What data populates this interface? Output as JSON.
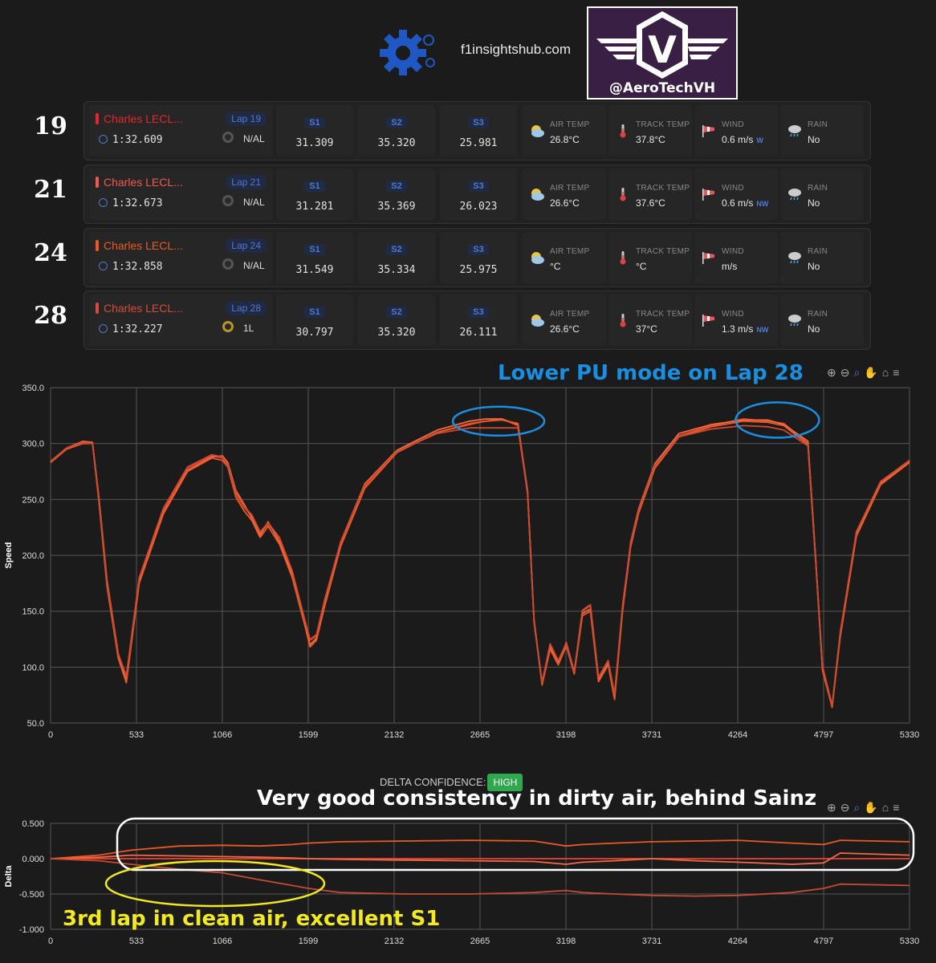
{
  "header": {
    "site": "f1insightshub.com",
    "handle": "@AeroTechVH",
    "logo_letter": "V"
  },
  "laps": [
    {
      "lap": "19",
      "driver": "Charles LECL...",
      "pill": "Lap 19",
      "time": "1:32.609",
      "tyre": "N/AL",
      "tyre_type": "std",
      "s1": "31.309",
      "s2": "35.320",
      "s3": "25.981",
      "air": "26.8°C",
      "track": "37.8°C",
      "wind": "0.6 m/s",
      "wind_dir": "W",
      "rain": "No",
      "color": "#e4262f"
    },
    {
      "lap": "21",
      "driver": "Charles LECL...",
      "pill": "Lap 21",
      "time": "1:32.673",
      "tyre": "N/AL",
      "tyre_type": "std",
      "s1": "31.281",
      "s2": "35.369",
      "s3": "26.023",
      "air": "26.6°C",
      "track": "37.6°C",
      "wind": "0.6 m/s",
      "wind_dir": "NW",
      "rain": "No",
      "color": "#f05a4f"
    },
    {
      "lap": "24",
      "driver": "Charles LECL...",
      "pill": "Lap 24",
      "time": "1:32.858",
      "tyre": "N/AL",
      "tyre_type": "std",
      "s1": "31.549",
      "s2": "35.334",
      "s3": "25.975",
      "air": "°C",
      "track": "°C",
      "wind": "m/s",
      "wind_dir": "",
      "rain": "No",
      "color": "#ea5a24"
    },
    {
      "lap": "28",
      "driver": "Charles LECL...",
      "pill": "Lap 28",
      "time": "1:32.227",
      "tyre": "1L",
      "tyre_type": "int",
      "s1": "30.797",
      "s2": "35.320",
      "s3": "26.111",
      "air": "26.6°C",
      "track": "37°C",
      "wind": "1.3 m/s",
      "wind_dir": "NW",
      "rain": "No",
      "color": "#d94a3a"
    }
  ],
  "labels": {
    "s1": "S1",
    "s2": "S2",
    "s3": "S3",
    "air": "AIR TEMP",
    "track": "TRACK TEMP",
    "wind": "WIND",
    "rain": "RAIN"
  },
  "delta_confidence": {
    "label": "DELTA CONFIDENCE:",
    "value": "HIGH"
  },
  "annotations": {
    "speed": "Lower PU mode on Lap 28",
    "dirty_air": "Very good consistency in dirty air, behind Sainz",
    "clean_air": "3rd lap in clean air, excellent S1"
  },
  "colors": {
    "annotation_blue": "#1a8ee0",
    "annotation_yellow": "#f2ea1f",
    "annotation_white": "#ffffff",
    "line": "#e0502e"
  },
  "chart_data": [
    {
      "type": "line",
      "title": "",
      "xlabel": "",
      "ylabel": "Speed",
      "xlim": [
        0,
        5330
      ],
      "ylim": [
        50,
        350
      ],
      "xticks": [
        "0",
        "533",
        "1066",
        "1599",
        "2132",
        "2665",
        "3198",
        "3731",
        "4264",
        "4797",
        "5330"
      ],
      "yticks": [
        "50.0",
        "100.0",
        "150.0",
        "200.0",
        "250.0",
        "300.0",
        "350.0"
      ],
      "grid": true,
      "x": [
        0,
        100,
        200,
        260,
        300,
        350,
        420,
        470,
        550,
        700,
        850,
        1000,
        1066,
        1100,
        1150,
        1200,
        1250,
        1300,
        1350,
        1420,
        1500,
        1580,
        1610,
        1650,
        1700,
        1800,
        1950,
        2150,
        2400,
        2600,
        2700,
        2800,
        2900,
        2960,
        3000,
        3050,
        3100,
        3150,
        3200,
        3250,
        3300,
        3350,
        3400,
        3460,
        3500,
        3550,
        3600,
        3650,
        3750,
        3900,
        4100,
        4300,
        4450,
        4550,
        4700,
        4750,
        4790,
        4850,
        4900,
        5000,
        5150,
        5330
      ],
      "series": [
        {
          "name": "Lap 19",
          "values": [
            284,
            296,
            301,
            301,
            250,
            175,
            110,
            91,
            178,
            240,
            278,
            289,
            287,
            280,
            255,
            243,
            235,
            220,
            228,
            215,
            185,
            140,
            124,
            128,
            158,
            210,
            262,
            293,
            310,
            318,
            320,
            322,
            316,
            255,
            140,
            85,
            120,
            105,
            120,
            95,
            150,
            155,
            90,
            105,
            75,
            155,
            210,
            240,
            280,
            307,
            316,
            322,
            320,
            318,
            300,
            190,
            100,
            65,
            130,
            220,
            265,
            285
          ]
        },
        {
          "name": "Lap 21",
          "values": [
            284,
            296,
            302,
            301,
            252,
            178,
            112,
            89,
            176,
            238,
            276,
            288,
            289,
            283,
            258,
            246,
            233,
            218,
            230,
            212,
            183,
            138,
            120,
            126,
            156,
            212,
            264,
            294,
            312,
            320,
            322,
            322,
            317,
            258,
            142,
            86,
            118,
            104,
            122,
            96,
            148,
            152,
            88,
            104,
            73,
            153,
            212,
            242,
            282,
            309,
            317,
            321,
            321,
            317,
            302,
            192,
            98,
            66,
            128,
            218,
            264,
            284
          ]
        },
        {
          "name": "Lap 24",
          "values": [
            283,
            295,
            300,
            300,
            248,
            172,
            108,
            86,
            175,
            237,
            275,
            287,
            285,
            279,
            252,
            240,
            231,
            216,
            226,
            210,
            180,
            136,
            118,
            124,
            154,
            208,
            260,
            292,
            310,
            317,
            320,
            321,
            318,
            256,
            141,
            84,
            116,
            102,
            119,
            94,
            146,
            150,
            87,
            102,
            71,
            151,
            208,
            238,
            278,
            306,
            315,
            320,
            319,
            316,
            299,
            189,
            97,
            64,
            127,
            217,
            263,
            283
          ]
        },
        {
          "name": "Lap 28",
          "values": [
            284,
            296,
            301,
            300,
            250,
            176,
            112,
            92,
            180,
            242,
            279,
            290,
            288,
            281,
            256,
            244,
            236,
            221,
            229,
            216,
            186,
            141,
            125,
            129,
            160,
            212,
            263,
            293,
            309,
            314,
            314,
            314,
            314,
            256,
            140,
            86,
            121,
            106,
            121,
            96,
            151,
            156,
            91,
            106,
            76,
            156,
            211,
            241,
            281,
            306,
            313,
            316,
            315,
            312,
            298,
            190,
            101,
            66,
            131,
            221,
            266,
            285
          ]
        }
      ]
    },
    {
      "type": "line",
      "title": "",
      "xlabel": "",
      "ylabel": "Delta",
      "xlim": [
        0,
        5330
      ],
      "ylim": [
        -1.0,
        0.5
      ],
      "xticks": [
        "0",
        "533",
        "1066",
        "1599",
        "2132",
        "2665",
        "3198",
        "3731",
        "4264",
        "4797",
        "5330"
      ],
      "yticks": [
        "-1.000",
        "-0.500",
        "0.000",
        "0.500"
      ],
      "grid": true,
      "x": [
        0,
        300,
        500,
        800,
        1066,
        1300,
        1500,
        1599,
        1800,
        2200,
        2600,
        3000,
        3198,
        3300,
        3500,
        3731,
        4000,
        4264,
        4600,
        4797,
        4900,
        5330
      ],
      "series": [
        {
          "name": "Lap 19",
          "values": [
            0,
            0,
            0,
            0,
            0,
            0,
            0,
            0,
            0,
            0,
            0,
            0,
            0,
            0,
            0,
            0,
            0,
            0,
            0,
            0,
            0,
            0
          ]
        },
        {
          "name": "Lap 21",
          "values": [
            0,
            0.02,
            0.05,
            0.04,
            0.03,
            0.02,
            0.01,
            0,
            -0.01,
            -0.02,
            -0.03,
            -0.04,
            -0.08,
            -0.05,
            -0.03,
            0,
            -0.03,
            -0.05,
            -0.08,
            -0.06,
            0.08,
            0.05
          ]
        },
        {
          "name": "Lap 24",
          "values": [
            0,
            0.05,
            0.12,
            0.18,
            0.19,
            0.18,
            0.2,
            0.22,
            0.24,
            0.25,
            0.26,
            0.25,
            0.18,
            0.2,
            0.22,
            0.24,
            0.25,
            0.26,
            0.22,
            0.2,
            0.26,
            0.24
          ]
        },
        {
          "name": "Lap 28",
          "values": [
            0,
            -0.03,
            -0.08,
            -0.15,
            -0.2,
            -0.3,
            -0.38,
            -0.42,
            -0.48,
            -0.5,
            -0.5,
            -0.48,
            -0.45,
            -0.48,
            -0.5,
            -0.52,
            -0.53,
            -0.52,
            -0.48,
            -0.42,
            -0.36,
            -0.38
          ]
        }
      ]
    }
  ]
}
